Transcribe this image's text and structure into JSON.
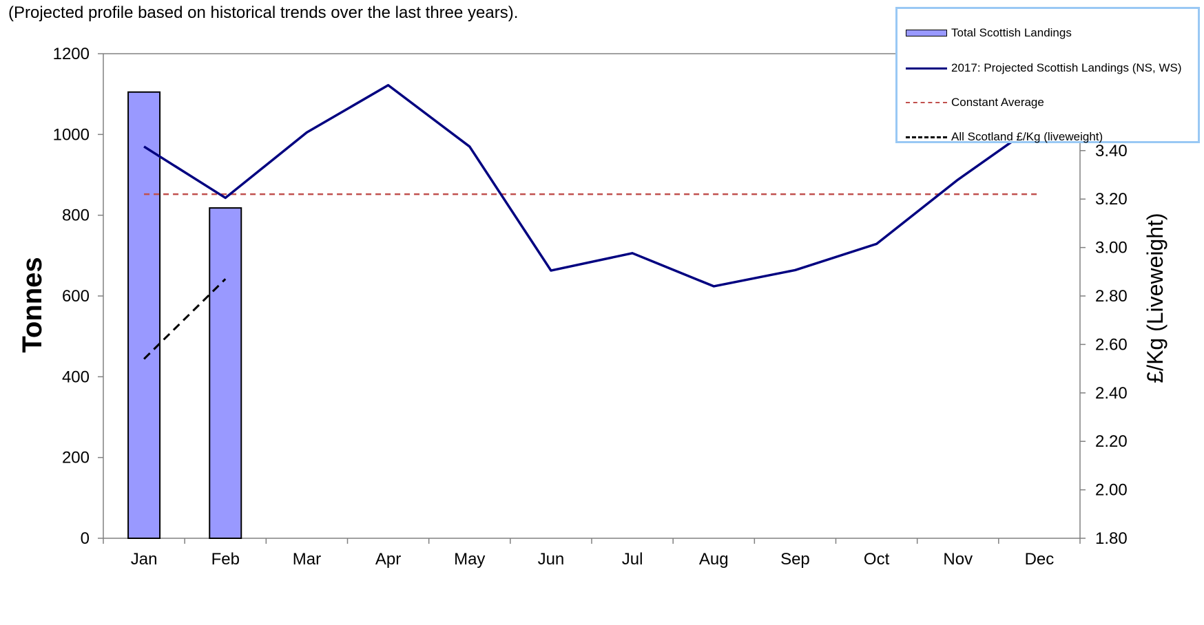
{
  "subtitle": "(Projected profile based on historical trends over the last three years).",
  "colors": {
    "bar_fill": "#9999ff",
    "projected_line": "#000080",
    "average_line": "#c0504d",
    "price_line": "#000000",
    "legend_border": "#99c8f4"
  },
  "chart_data": {
    "type": "bar",
    "categories": [
      "Jan",
      "Feb",
      "Mar",
      "Apr",
      "May",
      "Jun",
      "Jul",
      "Aug",
      "Sep",
      "Oct",
      "Nov",
      "Dec"
    ],
    "ylabel": "Tonnes",
    "y2label": "£/Kg (Liveweight)",
    "ylim": [
      0,
      1200
    ],
    "yticks": [
      "0",
      "200",
      "400",
      "600",
      "800",
      "1000",
      "1200"
    ],
    "y2lim": [
      1.8,
      3.8
    ],
    "y2ticks": [
      "1.80",
      "2.00",
      "2.20",
      "2.40",
      "2.60",
      "2.80",
      "3.00",
      "3.20",
      "3.40"
    ],
    "grid": false,
    "legend_position": "top-right",
    "series": [
      {
        "name": "Total Scottish Landings",
        "type": "bar",
        "axis": "left",
        "values": [
          1105,
          818,
          null,
          null,
          null,
          null,
          null,
          null,
          null,
          null,
          null,
          null
        ]
      },
      {
        "name": "2017: Projected Scottish Landings (NS, WS)",
        "type": "line",
        "axis": "left",
        "values": [
          970,
          843,
          1005,
          1122,
          970,
          663,
          706,
          624,
          664,
          729,
          888,
          1030
        ]
      },
      {
        "name": "Constant Average",
        "type": "line",
        "style": "dashed",
        "axis": "left",
        "values": [
          852,
          852,
          852,
          852,
          852,
          852,
          852,
          852,
          852,
          852,
          852,
          852
        ]
      },
      {
        "name": "All Scotland £/Kg (liveweight)",
        "type": "line",
        "style": "dashed",
        "axis": "right",
        "values": [
          2.54,
          2.87,
          null,
          null,
          null,
          null,
          null,
          null,
          null,
          null,
          null,
          null
        ]
      }
    ]
  }
}
